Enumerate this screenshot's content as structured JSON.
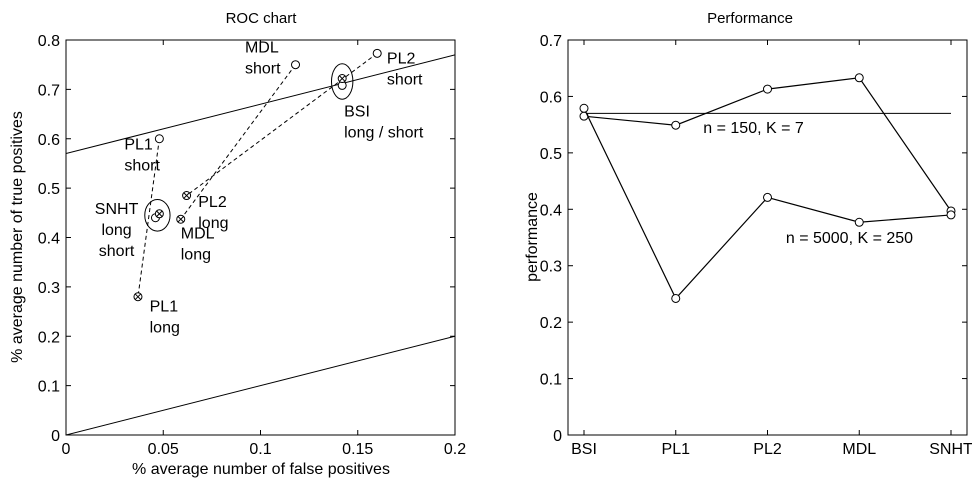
{
  "chart_data": [
    {
      "type": "scatter",
      "title": "ROC chart",
      "xlabel": "% average number of false positives",
      "ylabel": "% average number of true positives",
      "xlim": [
        0,
        0.2
      ],
      "ylim": [
        0,
        0.8
      ],
      "xticks": [
        "0",
        "0.05",
        "0.1",
        "0.15",
        "0.2"
      ],
      "yticks": [
        "0",
        "0.1",
        "0.2",
        "0.3",
        "0.4",
        "0.5",
        "0.6",
        "0.7",
        "0.8"
      ],
      "grid": false,
      "lines": [
        {
          "x": [
            0,
            0.2
          ],
          "y": [
            0,
            0.2
          ],
          "style": "solid"
        },
        {
          "x": [
            0,
            0.2
          ],
          "y": [
            0.57,
            0.77
          ],
          "style": "solid"
        }
      ],
      "points": [
        {
          "x": 0.048,
          "y": 0.6,
          "marker": "circle"
        },
        {
          "x": 0.037,
          "y": 0.28,
          "marker": "circle-x"
        },
        {
          "x": 0.118,
          "y": 0.75,
          "marker": "circle"
        },
        {
          "x": 0.059,
          "y": 0.437,
          "marker": "circle-x"
        },
        {
          "x": 0.16,
          "y": 0.773,
          "marker": "circle"
        },
        {
          "x": 0.062,
          "y": 0.485,
          "marker": "circle-x"
        },
        {
          "x": 0.046,
          "y": 0.44,
          "marker": "circle"
        },
        {
          "x": 0.048,
          "y": 0.448,
          "marker": "circle-x"
        },
        {
          "x": 0.142,
          "y": 0.708,
          "marker": "circle"
        },
        {
          "x": 0.142,
          "y": 0.722,
          "marker": "circle-x"
        }
      ],
      "dashed_links": [
        {
          "from": [
            0.048,
            0.6
          ],
          "to": [
            0.037,
            0.28
          ]
        },
        {
          "from": [
            0.118,
            0.75
          ],
          "to": [
            0.059,
            0.437
          ]
        },
        {
          "from": [
            0.16,
            0.773
          ],
          "to": [
            0.062,
            0.485
          ]
        }
      ],
      "ellipses": [
        {
          "cx": 0.047,
          "cy": 0.445,
          "rx": 0.0065,
          "ry": 0.032
        },
        {
          "cx": 0.142,
          "cy": 0.716,
          "rx": 0.0055,
          "ry": 0.036
        }
      ],
      "annotations": [
        {
          "lines": [
            "MDL",
            "short"
          ],
          "x": 0.092,
          "y": 0.775,
          "anchor": "start"
        },
        {
          "lines": [
            "PL2",
            "short"
          ],
          "x": 0.165,
          "y": 0.752,
          "anchor": "start"
        },
        {
          "lines": [
            "PL1",
            "short"
          ],
          "x": 0.03,
          "y": 0.578,
          "anchor": "start"
        },
        {
          "lines": [
            "BSI",
            "long / short"
          ],
          "x": 0.143,
          "y": 0.645,
          "anchor": "start"
        },
        {
          "lines": [
            "PL2",
            "long"
          ],
          "x": 0.068,
          "y": 0.462,
          "anchor": "start"
        },
        {
          "lines": [
            "SNHT",
            "long",
            "short"
          ],
          "x": 0.026,
          "y": 0.448,
          "anchor": "middle"
        },
        {
          "lines": [
            "MDL",
            "long"
          ],
          "x": 0.059,
          "y": 0.398,
          "anchor": "start"
        },
        {
          "lines": [
            "PL1",
            "long"
          ],
          "x": 0.043,
          "y": 0.25,
          "anchor": "start"
        }
      ]
    },
    {
      "type": "line",
      "title": "Performance",
      "xlabel": "",
      "ylabel": "performance",
      "categories": [
        "BSI",
        "PL1",
        "PL2",
        "MDL",
        "SNHT"
      ],
      "ylim": [
        0,
        0.7
      ],
      "yticks": [
        "0",
        "0.1",
        "0.2",
        "0.3",
        "0.4",
        "0.5",
        "0.6",
        "0.7"
      ],
      "grid": false,
      "series": [
        {
          "name": "n = 150, K = 7",
          "values": [
            0.565,
            0.549,
            0.613,
            0.633,
            0.397
          ]
        },
        {
          "name": "n = 5000, K = 250",
          "values": [
            0.579,
            0.242,
            0.421,
            0.377,
            0.39
          ]
        }
      ],
      "reference_line": 0.57,
      "series_label_positions": [
        {
          "xi": 1.3,
          "y": 0.535
        },
        {
          "xi": 2.2,
          "y": 0.34
        }
      ]
    }
  ]
}
